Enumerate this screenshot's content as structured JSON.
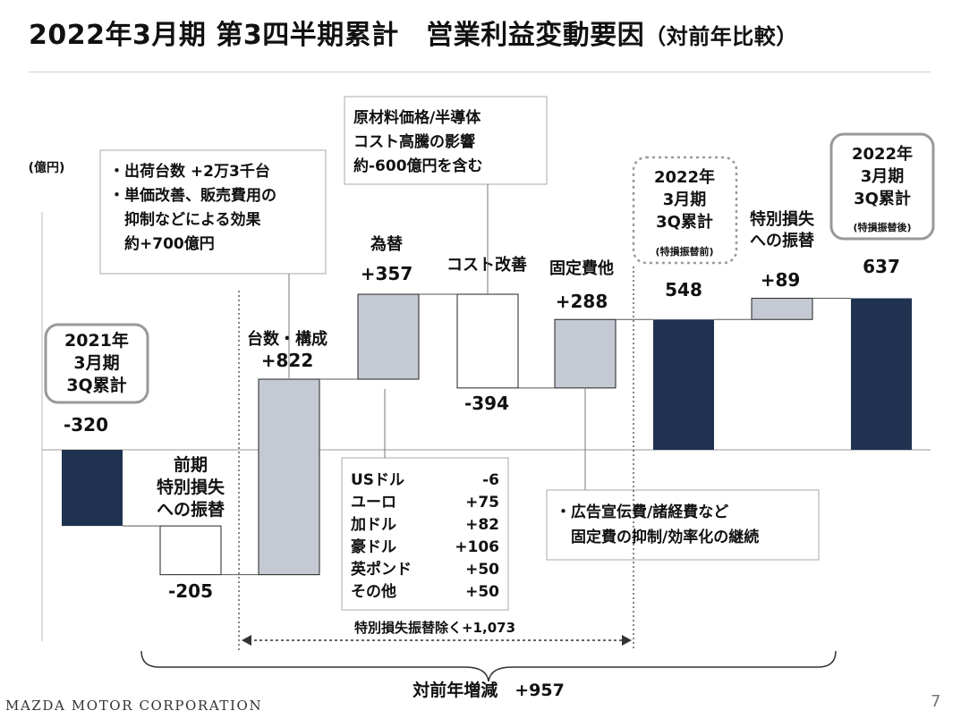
{
  "title": {
    "main": "2022年3月期 第3四半期累計　営業利益変動要因",
    "sub": "（対前年比較）"
  },
  "colors": {
    "navy": "#1f3350",
    "gray_fill": "#c5c9d3",
    "white_fill": "#ffffff",
    "dark_border": "#222222"
  },
  "unit_label": "(億円)",
  "chart_data": {
    "type": "waterfall",
    "unit": "億円",
    "steps": [
      {
        "key": "fy21",
        "label_lines": [
          "2021年",
          "3月期",
          "3Q累計"
        ],
        "value": -320,
        "kind": "total",
        "value_text": "-320"
      },
      {
        "key": "prev_special",
        "label_lines": [
          "前期",
          "特別損失",
          "への振替"
        ],
        "value": -205,
        "kind": "decrease",
        "value_text": "-205"
      },
      {
        "key": "volume",
        "label_lines": [
          "台数・構成"
        ],
        "value": 822,
        "kind": "increase",
        "value_text": "+822"
      },
      {
        "key": "fx",
        "label_lines": [
          "為替"
        ],
        "value": 357,
        "kind": "increase",
        "value_text": "+357"
      },
      {
        "key": "cost",
        "label_lines": [
          "コスト改善"
        ],
        "value": -394,
        "kind": "decrease",
        "value_text": "-394"
      },
      {
        "key": "fixed",
        "label_lines": [
          "固定費他"
        ],
        "value": 288,
        "kind": "increase",
        "value_text": "+288"
      },
      {
        "key": "fy22_before",
        "label_lines": [
          "2022年",
          "3月期",
          "3Q累計"
        ],
        "sublabel": "(特損振替前)",
        "value": 548,
        "kind": "total",
        "value_text": "548"
      },
      {
        "key": "special_transfer",
        "label_lines": [
          "特別損失",
          "への振替"
        ],
        "value": 89,
        "kind": "increase",
        "value_text": "+89"
      },
      {
        "key": "fy22_after",
        "label_lines": [
          "2022年",
          "3月期",
          "3Q累計"
        ],
        "sublabel": "(特損振替後)",
        "value": 637,
        "kind": "total",
        "value_text": "637"
      }
    ],
    "annotations": {
      "volume_note": [
        "・出荷台数 +2万3千台",
        "・単価改善、販売費用の",
        "　抑制などによる効果",
        "　約+700億円"
      ],
      "cost_note": [
        "原材料価格/半導体",
        "コスト高騰の影響",
        "約-600億円を含む"
      ],
      "fixed_note": [
        "・広告宣伝費/諸経費など",
        "　固定費の抑制/効率化の継続"
      ],
      "fx_breakdown": [
        {
          "currency": "USドル",
          "value": "-6"
        },
        {
          "currency": "ユーロ",
          "value": "+75"
        },
        {
          "currency": "加ドル",
          "value": "+82"
        },
        {
          "currency": "豪ドル",
          "value": "+106"
        },
        {
          "currency": "英ポンド",
          "value": "+50"
        },
        {
          "currency": "その他",
          "value": "+50"
        }
      ]
    },
    "range_label": "特別損失振替除く+1,073",
    "total_label": "対前年増減　+957"
  },
  "footer": {
    "company": "MAZDA MOTOR CORPORATION",
    "page": "7"
  }
}
